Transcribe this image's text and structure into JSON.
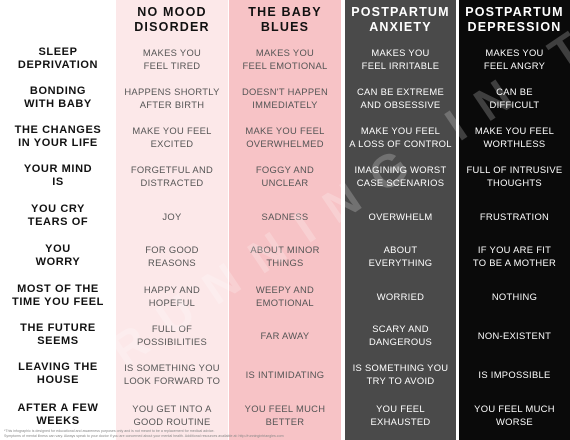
{
  "columns": [
    {
      "title1": "NO MOOD",
      "title2": "DISORDER"
    },
    {
      "title1": "THE BABY",
      "title2": "BLUES"
    },
    {
      "title1": "POSTPARTUM",
      "title2": "ANXIETY"
    },
    {
      "title1": "POSTPARTUM",
      "title2": "DEPRESSION"
    }
  ],
  "rows": [
    {
      "label1": "SLEEP",
      "label2": "DEPRIVATION",
      "cells": [
        [
          "MAKES YOU",
          "FEEL TIRED"
        ],
        [
          "MAKES YOU",
          "FEEL EMOTIONAL"
        ],
        [
          "MAKES YOU",
          "FEEL IRRITABLE"
        ],
        [
          "MAKES YOU",
          "FEEL ANGRY"
        ]
      ]
    },
    {
      "label1": "BONDING",
      "label2": "WITH BABY",
      "cells": [
        [
          "HAPPENS SHORTLY",
          "AFTER BIRTH"
        ],
        [
          "DOESN'T HAPPEN",
          "IMMEDIATELY"
        ],
        [
          "CAN BE EXTREME",
          "AND OBSESSIVE"
        ],
        [
          "CAN BE",
          "DIFFICULT"
        ]
      ]
    },
    {
      "label1": "THE CHANGES",
      "label2": "IN YOUR LIFE",
      "cells": [
        [
          "MAKE YOU FEEL",
          "EXCITED"
        ],
        [
          "MAKE YOU FEEL",
          "OVERWHELMED"
        ],
        [
          "MAKE YOU FEEL",
          "A LOSS OF CONTROL"
        ],
        [
          "MAKE YOU FEEL",
          "WORTHLESS"
        ]
      ]
    },
    {
      "label1": "YOUR MIND",
      "label2": "IS",
      "cells": [
        [
          "FORGETFUL AND",
          "DISTRACTED"
        ],
        [
          "FOGGY AND",
          "UNCLEAR"
        ],
        [
          "IMAGINING WORST",
          "CASE SCENARIOS"
        ],
        [
          "FULL OF INTRUSIVE",
          "THOUGHTS"
        ]
      ]
    },
    {
      "label1": "YOU CRY",
      "label2": "TEARS OF",
      "cells": [
        [
          "JOY",
          ""
        ],
        [
          "SADNESS",
          ""
        ],
        [
          "OVERWHELM",
          ""
        ],
        [
          "FRUSTRATION",
          ""
        ]
      ]
    },
    {
      "label1": "YOU",
      "label2": "WORRY",
      "cells": [
        [
          "FOR GOOD",
          "REASONS"
        ],
        [
          "ABOUT MINOR",
          "THINGS"
        ],
        [
          "ABOUT",
          "EVERYTHING"
        ],
        [
          "IF YOU ARE FIT",
          "TO BE A MOTHER"
        ]
      ]
    },
    {
      "label1": "MOST OF THE",
      "label2": "TIME YOU FEEL",
      "cells": [
        [
          "HAPPY AND",
          "HOPEFUL"
        ],
        [
          "WEEPY AND",
          "EMOTIONAL"
        ],
        [
          "WORRIED",
          ""
        ],
        [
          "NOTHING",
          ""
        ]
      ]
    },
    {
      "label1": "THE FUTURE",
      "label2": "SEEMS",
      "cells": [
        [
          "FULL OF",
          "POSSIBILITIES"
        ],
        [
          "FAR AWAY",
          ""
        ],
        [
          "SCARY AND",
          "DANGEROUS"
        ],
        [
          "NON-EXISTENT",
          ""
        ]
      ]
    },
    {
      "label1": "LEAVING THE",
      "label2": "HOUSE",
      "cells": [
        [
          "IS SOMETHING YOU",
          "LOOK FORWARD TO"
        ],
        [
          "IS INTIMIDATING",
          ""
        ],
        [
          "IS SOMETHING YOU",
          "TRY TO AVOID"
        ],
        [
          "IS IMPOSSIBLE",
          ""
        ]
      ]
    },
    {
      "label1": "AFTER A FEW",
      "label2": "WEEKS",
      "cells": [
        [
          "YOU GET INTO A",
          "GOOD ROUTINE"
        ],
        [
          "YOU FEEL MUCH",
          "BETTER"
        ],
        [
          "YOU FEEL",
          "EXHAUSTED"
        ],
        [
          "YOU FEEL MUCH",
          "WORSE"
        ]
      ]
    }
  ],
  "watermark": "RUNNING IN TRIANGLES",
  "footnote1": "*This infographic is designed for educational and awareness purposes only and is not meant to be a replacement for medical advice.",
  "footnote2": "Symptoms of mental illness can vary. Always speak to your doctor if you are concerned about your mental health. Additional resources available at: http://runningintriangles.com"
}
